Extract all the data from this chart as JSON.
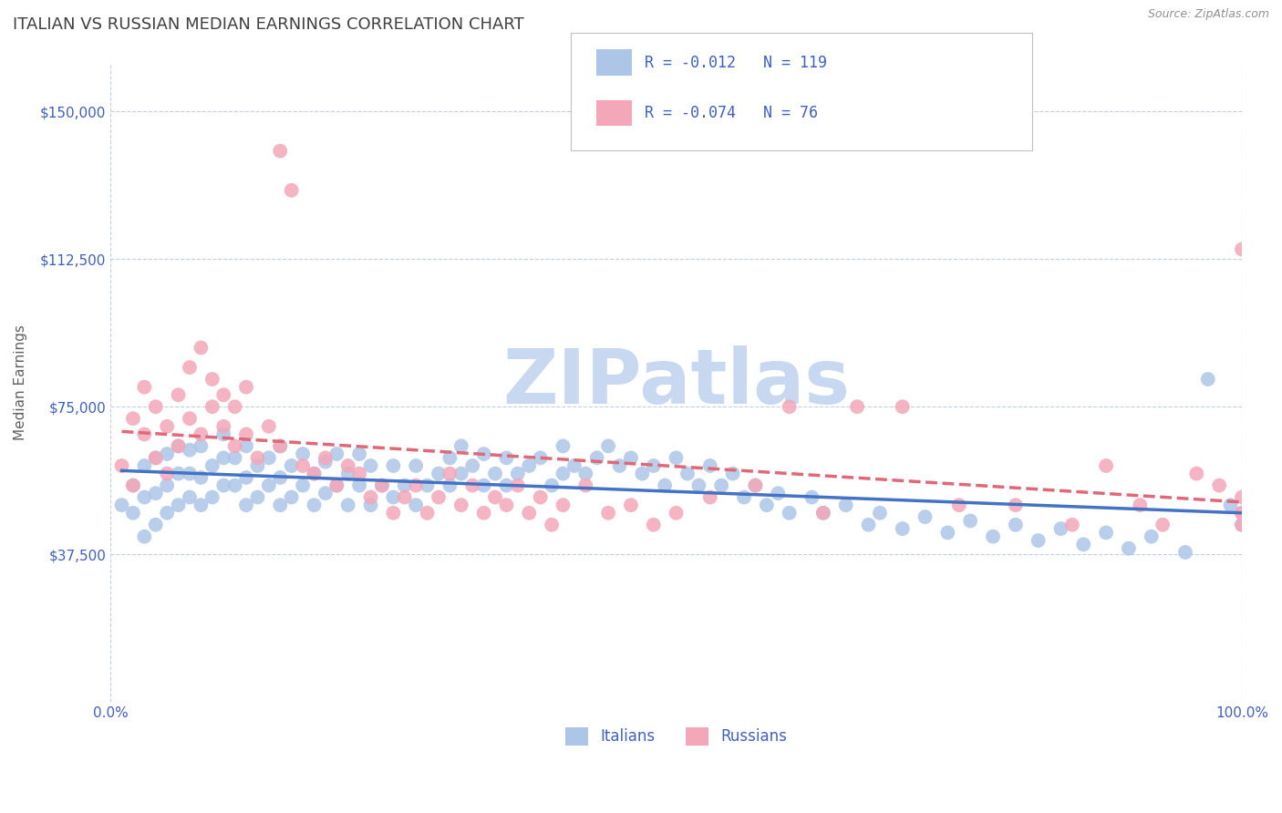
{
  "title": "ITALIAN VS RUSSIAN MEDIAN EARNINGS CORRELATION CHART",
  "source": "Source: ZipAtlas.com",
  "ylabel": "Median Earnings",
  "xlim": [
    0.0,
    1.0
  ],
  "ylim": [
    0,
    162500
  ],
  "yticks": [
    0,
    37500,
    75000,
    112500,
    150000
  ],
  "ytick_labels": [
    "",
    "$37,500",
    "$75,000",
    "$112,500",
    "$150,000"
  ],
  "xticks": [
    0.0,
    1.0
  ],
  "xtick_labels": [
    "0.0%",
    "100.0%"
  ],
  "italians_R": -0.012,
  "italians_N": 119,
  "russians_R": -0.074,
  "russians_N": 76,
  "italian_color": "#adc6e8",
  "russian_color": "#f4a7b9",
  "italian_line_color": "#4472c4",
  "russian_line_color": "#e06878",
  "background_color": "#ffffff",
  "grid_color": "#c0cfe8",
  "title_color": "#404040",
  "watermark_color": "#c8d8f0",
  "legend_label_color": "#4060c0",
  "title_fontsize": 13,
  "axis_label_fontsize": 11,
  "tick_fontsize": 11,
  "watermark_fontsize": 60,
  "italians_x": [
    0.01,
    0.02,
    0.02,
    0.03,
    0.03,
    0.03,
    0.04,
    0.04,
    0.04,
    0.05,
    0.05,
    0.05,
    0.06,
    0.06,
    0.06,
    0.07,
    0.07,
    0.07,
    0.08,
    0.08,
    0.08,
    0.09,
    0.09,
    0.1,
    0.1,
    0.1,
    0.11,
    0.11,
    0.12,
    0.12,
    0.12,
    0.13,
    0.13,
    0.14,
    0.14,
    0.15,
    0.15,
    0.15,
    0.16,
    0.16,
    0.17,
    0.17,
    0.18,
    0.18,
    0.19,
    0.19,
    0.2,
    0.2,
    0.21,
    0.21,
    0.22,
    0.22,
    0.23,
    0.23,
    0.24,
    0.25,
    0.25,
    0.26,
    0.27,
    0.27,
    0.28,
    0.29,
    0.3,
    0.3,
    0.31,
    0.31,
    0.32,
    0.33,
    0.33,
    0.34,
    0.35,
    0.35,
    0.36,
    0.37,
    0.38,
    0.39,
    0.4,
    0.4,
    0.41,
    0.42,
    0.43,
    0.44,
    0.45,
    0.46,
    0.47,
    0.48,
    0.49,
    0.5,
    0.51,
    0.52,
    0.53,
    0.54,
    0.55,
    0.56,
    0.57,
    0.58,
    0.59,
    0.6,
    0.62,
    0.63,
    0.65,
    0.67,
    0.68,
    0.7,
    0.72,
    0.74,
    0.76,
    0.78,
    0.8,
    0.82,
    0.84,
    0.86,
    0.88,
    0.9,
    0.92,
    0.95,
    0.97,
    0.99,
    1.0
  ],
  "italians_y": [
    50000,
    48000,
    55000,
    42000,
    52000,
    60000,
    45000,
    53000,
    62000,
    48000,
    55000,
    63000,
    50000,
    58000,
    65000,
    52000,
    58000,
    64000,
    50000,
    57000,
    65000,
    52000,
    60000,
    55000,
    62000,
    68000,
    55000,
    62000,
    50000,
    57000,
    65000,
    52000,
    60000,
    55000,
    62000,
    50000,
    57000,
    65000,
    52000,
    60000,
    55000,
    63000,
    50000,
    58000,
    53000,
    61000,
    55000,
    63000,
    50000,
    58000,
    55000,
    63000,
    50000,
    60000,
    55000,
    52000,
    60000,
    55000,
    50000,
    60000,
    55000,
    58000,
    55000,
    62000,
    58000,
    65000,
    60000,
    55000,
    63000,
    58000,
    55000,
    62000,
    58000,
    60000,
    62000,
    55000,
    65000,
    58000,
    60000,
    58000,
    62000,
    65000,
    60000,
    62000,
    58000,
    60000,
    55000,
    62000,
    58000,
    55000,
    60000,
    55000,
    58000,
    52000,
    55000,
    50000,
    53000,
    48000,
    52000,
    48000,
    50000,
    45000,
    48000,
    44000,
    47000,
    43000,
    46000,
    42000,
    45000,
    41000,
    44000,
    40000,
    43000,
    39000,
    42000,
    38000,
    82000,
    50000,
    45000
  ],
  "russians_x": [
    0.01,
    0.02,
    0.02,
    0.03,
    0.03,
    0.04,
    0.04,
    0.05,
    0.05,
    0.06,
    0.06,
    0.07,
    0.07,
    0.08,
    0.08,
    0.09,
    0.09,
    0.1,
    0.1,
    0.11,
    0.11,
    0.12,
    0.12,
    0.13,
    0.14,
    0.15,
    0.15,
    0.16,
    0.17,
    0.18,
    0.19,
    0.2,
    0.21,
    0.22,
    0.23,
    0.24,
    0.25,
    0.26,
    0.27,
    0.28,
    0.29,
    0.3,
    0.31,
    0.32,
    0.33,
    0.34,
    0.35,
    0.36,
    0.37,
    0.38,
    0.39,
    0.4,
    0.42,
    0.44,
    0.46,
    0.48,
    0.5,
    0.53,
    0.57,
    0.6,
    0.63,
    0.66,
    0.7,
    0.75,
    0.8,
    0.85,
    0.88,
    0.91,
    0.93,
    0.96,
    0.98,
    1.0,
    1.0,
    1.0,
    1.0,
    1.0
  ],
  "russians_y": [
    60000,
    72000,
    55000,
    68000,
    80000,
    62000,
    75000,
    58000,
    70000,
    65000,
    78000,
    72000,
    85000,
    68000,
    90000,
    75000,
    82000,
    70000,
    78000,
    65000,
    75000,
    68000,
    80000,
    62000,
    70000,
    65000,
    140000,
    130000,
    60000,
    58000,
    62000,
    55000,
    60000,
    58000,
    52000,
    55000,
    48000,
    52000,
    55000,
    48000,
    52000,
    58000,
    50000,
    55000,
    48000,
    52000,
    50000,
    55000,
    48000,
    52000,
    45000,
    50000,
    55000,
    48000,
    50000,
    45000,
    48000,
    52000,
    55000,
    75000,
    48000,
    75000,
    75000,
    50000,
    50000,
    45000,
    60000,
    50000,
    45000,
    58000,
    55000,
    48000,
    52000,
    45000,
    48000,
    115000
  ]
}
